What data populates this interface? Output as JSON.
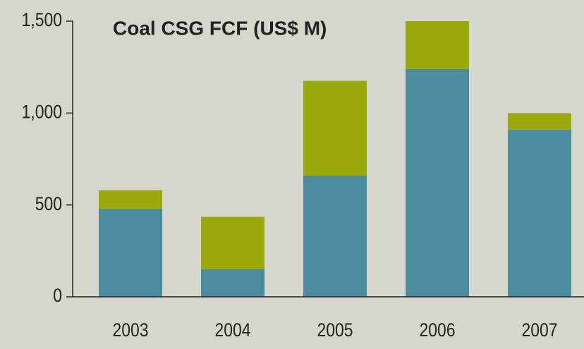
{
  "chart_data": {
    "type": "stacked_bar",
    "title": "Coal CSG FCF (US$ M)",
    "categories": [
      "2003",
      "2004",
      "2005",
      "2006",
      "2007"
    ],
    "series": [
      {
        "color": "#4a8c9d",
        "values": [
          480,
          150,
          660,
          1240,
          910
        ]
      },
      {
        "color": "#9aaa0a",
        "values": [
          100,
          285,
          515,
          260,
          90
        ]
      }
    ],
    "ylim": [
      0,
      1500
    ],
    "yticks": [
      0,
      500,
      {
        "value": 1000,
        "label": "1,000"
      },
      {
        "value": 1500,
        "label": "1,500"
      }
    ]
  }
}
